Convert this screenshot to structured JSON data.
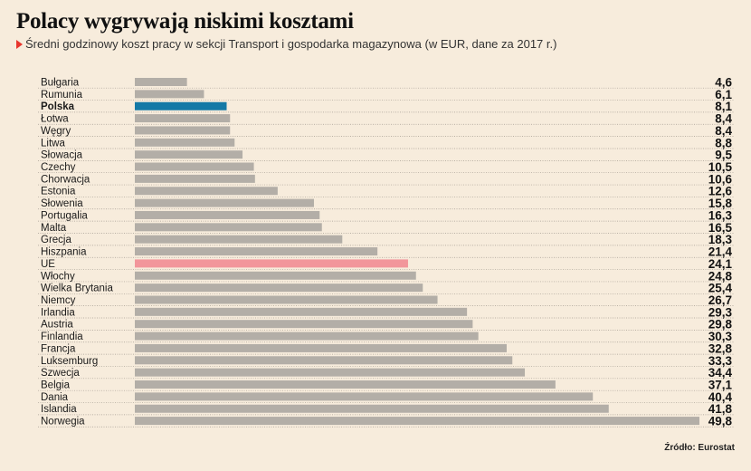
{
  "title": "Polacy wygrywają niskimi kosztami",
  "subtitle": "Średni godzinowy koszt pracy w sekcji Transport i gospodarka magazynowa (w EUR, dane za 2017 r.)",
  "source": "Źródło: Eurostat",
  "colors": {
    "bar": "#b3aea7",
    "highlight": "#1479a6",
    "eu": "#f2969b",
    "accent": "#e8362d",
    "grid": "#a59d92"
  },
  "chart_data": {
    "type": "bar",
    "orientation": "horizontal",
    "title": "Polacy wygrywają niskimi kosztami",
    "subtitle": "Średni godzinowy koszt pracy w sekcji Transport i gospodarka magazynowa (w EUR, dane za 2017 r.)",
    "xlabel": "",
    "ylabel": "",
    "xlim": [
      0,
      49.8
    ],
    "grid": false,
    "legend": "none",
    "highlight": "Polska",
    "reference": "UE",
    "categories": [
      "Bułgaria",
      "Rumunia",
      "Polska",
      "Łotwa",
      "Węgry",
      "Litwa",
      "Słowacja",
      "Czechy",
      "Chorwacja",
      "Estonia",
      "Słowenia",
      "Portugalia",
      "Malta",
      "Grecja",
      "Hiszpania",
      "UE",
      "Włochy",
      "Wielka Brytania",
      "Niemcy",
      "Irlandia",
      "Austria",
      "Finlandia",
      "Francja",
      "Luksemburg",
      "Szwecja",
      "Belgia",
      "Dania",
      "Islandia",
      "Norwegia"
    ],
    "values": [
      4.6,
      6.1,
      8.1,
      8.4,
      8.4,
      8.8,
      9.5,
      10.5,
      10.6,
      12.6,
      15.8,
      16.3,
      16.5,
      18.3,
      21.4,
      24.1,
      24.8,
      25.4,
      26.7,
      29.3,
      29.8,
      30.3,
      32.8,
      33.3,
      34.4,
      37.1,
      40.4,
      41.8,
      49.8
    ],
    "value_labels": [
      "4,6",
      "6,1",
      "8,1",
      "8,4",
      "8,4",
      "8,8",
      "9,5",
      "10,5",
      "10,6",
      "12,6",
      "15,8",
      "16,3",
      "16,5",
      "18,3",
      "21,4",
      "24,1",
      "24,8",
      "25,4",
      "26,7",
      "29,3",
      "29,8",
      "30,3",
      "32,8",
      "33,3",
      "34,4",
      "37,1",
      "40,4",
      "41,8",
      "49,8"
    ]
  }
}
